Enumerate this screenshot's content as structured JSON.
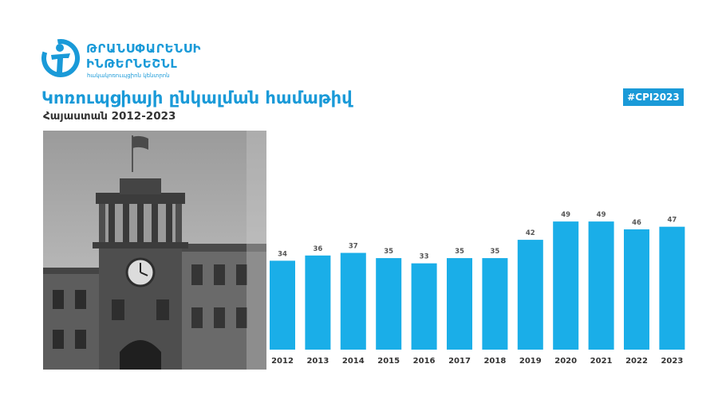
{
  "header": {
    "logo_line1": "ԹՐԱՆՍՓԱՐԵՆՍԻ",
    "logo_line2": "ԻՆԹԵՐՆԵՇՆԼ",
    "logo_line3": "հակակոռուպցիոն կենտրոն",
    "title": "Կոռուպցիայի ընկալման համաթիվ",
    "subtitle": "Հայաստան 2012-2023",
    "hashtag": "#CPI2023"
  },
  "colors": {
    "accent": "#1a9ad8",
    "bar": "#1aaee8",
    "label": "#555555"
  },
  "photo": {
    "icon": "government-building-photo"
  },
  "chart_data": {
    "type": "bar",
    "categories": [
      "2012",
      "2013",
      "2014",
      "2015",
      "2016",
      "2017",
      "2018",
      "2019",
      "2020",
      "2021",
      "2022",
      "2023"
    ],
    "values": [
      34,
      36,
      37,
      35,
      33,
      35,
      35,
      42,
      49,
      49,
      46,
      47
    ],
    "ylim": [
      0,
      60
    ],
    "grid": false,
    "legend": "none",
    "data_labels": true
  }
}
